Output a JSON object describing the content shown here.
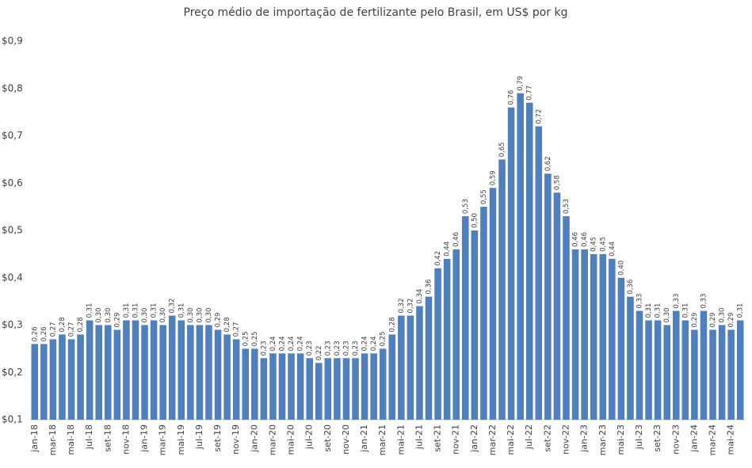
{
  "chart_data": {
    "type": "bar",
    "title": "Preço médio de importação de fertilizante pelo Brasil, em US$ por kg",
    "categories": [
      "jan-18",
      null,
      "mar-18",
      null,
      "mai-18",
      null,
      "jul-18",
      null,
      "set-18",
      null,
      "nov-18",
      null,
      "jan-19",
      null,
      "mar-19",
      null,
      "mai-19",
      null,
      "jul-19",
      null,
      "set-19",
      null,
      "nov-19",
      null,
      "jan-20",
      null,
      "mar-20",
      null,
      "mai-20",
      null,
      "jul-20",
      null,
      "set-20",
      null,
      "nov-20",
      null,
      "jan-21",
      null,
      "mar-21",
      null,
      "mai-21",
      null,
      "jul-21",
      null,
      "set-21",
      null,
      "nov-21",
      null,
      "jan-22",
      null,
      "mar-22",
      null,
      "mai-22",
      null,
      "jul-22",
      null,
      "set-22",
      null,
      "nov-22",
      null,
      "jan-23",
      null,
      "mar-23",
      null,
      "mai-23",
      null,
      "jul-23",
      null,
      "set-23",
      null,
      "nov-23",
      null,
      "jan-24",
      null,
      "mar-24",
      null,
      "mai-24",
      null
    ],
    "values": [
      0.26,
      0.26,
      0.27,
      0.28,
      0.27,
      0.28,
      0.31,
      0.3,
      0.3,
      0.29,
      0.31,
      0.31,
      0.3,
      0.31,
      0.3,
      0.32,
      0.31,
      0.3,
      0.3,
      0.3,
      0.29,
      0.28,
      0.27,
      0.25,
      0.25,
      0.23,
      0.24,
      0.24,
      0.24,
      0.24,
      0.23,
      0.22,
      0.23,
      0.23,
      0.23,
      0.23,
      0.24,
      0.24,
      0.25,
      0.28,
      0.32,
      0.32,
      0.34,
      0.36,
      0.42,
      0.44,
      0.46,
      0.53,
      0.5,
      0.55,
      0.59,
      0.65,
      0.76,
      0.79,
      0.77,
      0.72,
      0.62,
      0.58,
      0.53,
      0.46,
      0.46,
      0.45,
      0.45,
      0.44,
      0.4,
      0.36,
      0.33,
      0.31,
      0.31,
      0.3,
      0.33,
      0.31,
      0.29,
      0.33,
      0.29,
      0.3,
      0.29,
      0.31
    ],
    "value_labels": [
      "0,26",
      "0,26",
      "0,27",
      "0,28",
      "0,27",
      "0,28",
      "0,31",
      "0,30",
      "0,30",
      "0,29",
      "0,31",
      "0,31",
      "0,30",
      "0,31",
      "0,30",
      "0,32",
      "0,31",
      "0,30",
      "0,30",
      "0,30",
      "0,29",
      "0,28",
      "0,27",
      "0,25",
      "0,25",
      "0,23",
      "0,24",
      "0,24",
      "0,24",
      "0,24",
      "0,23",
      "0,22",
      "0,23",
      "0,23",
      "0,23",
      "0,23",
      "0,24",
      "0,24",
      "0,25",
      "0,28",
      "0,32",
      "0,32",
      "0,34",
      "0,36",
      "0,42",
      "0,44",
      "0,46",
      "0,53",
      "0,50",
      "0,55",
      "0,59",
      "0,65",
      "0,76",
      "0,79",
      "0,77",
      "0,72",
      "0,62",
      "0,58",
      "0,53",
      "0,46",
      "0,46",
      "0,45",
      "0,45",
      "0,44",
      "0,40",
      "0,36",
      "0,33",
      "0,31",
      "0,31",
      "0,30",
      "0,33",
      "0,31",
      "0,29",
      "0,33",
      "0,29",
      "0,30",
      "0,29",
      "0,31"
    ],
    "color": "#4f7fbd",
    "ylim": [
      0.1,
      0.9
    ],
    "yticks": [
      {
        "value": 0.1,
        "label": "$0,1"
      },
      {
        "value": 0.2,
        "label": "$0,2"
      },
      {
        "value": 0.3,
        "label": "$0,3"
      },
      {
        "value": 0.4,
        "label": "$0,4"
      },
      {
        "value": 0.5,
        "label": "$0,5"
      },
      {
        "value": 0.6,
        "label": "$0,6"
      },
      {
        "value": 0.7,
        "label": "$0,7"
      },
      {
        "value": 0.8,
        "label": "$0,8"
      },
      {
        "value": 0.9,
        "label": "$0,9"
      }
    ],
    "grid": false
  }
}
